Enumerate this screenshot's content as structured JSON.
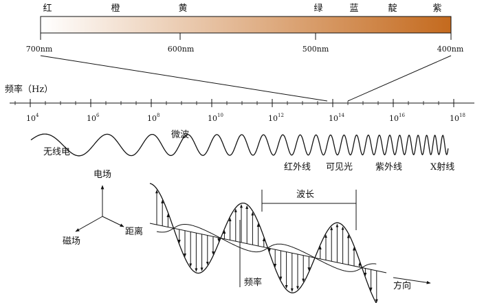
{
  "colors": {
    "gradient_start": "#ffffff",
    "gradient_end": "#c46a1e",
    "line": "#111111"
  },
  "color_names": [
    "红",
    "橙",
    "黄",
    "绿",
    "蓝",
    "靛",
    "紫"
  ],
  "wavelength_ticks": [
    "700nm",
    "600nm",
    "500nm",
    "400nm"
  ],
  "frequency_label": "频率（Hz）",
  "frequency_ticks": [
    {
      "base": "10",
      "exp": "4"
    },
    {
      "base": "10",
      "exp": "6"
    },
    {
      "base": "10",
      "exp": "8"
    },
    {
      "base": "10",
      "exp": "10"
    },
    {
      "base": "10",
      "exp": "12"
    },
    {
      "base": "10",
      "exp": "14"
    },
    {
      "base": "10",
      "exp": "16"
    },
    {
      "base": "10",
      "exp": "18"
    }
  ],
  "wave_labels": {
    "radio": "无线电",
    "microwave": "微波",
    "infrared": "红外线",
    "visible": "可见光",
    "ultraviolet": "紫外线",
    "xray": "X射线"
  },
  "em_wave": {
    "electric_field": "电场",
    "magnetic_field": "磁场",
    "distance": "距离",
    "wavelength": "波长",
    "frequency": "频率",
    "direction": "方向"
  }
}
